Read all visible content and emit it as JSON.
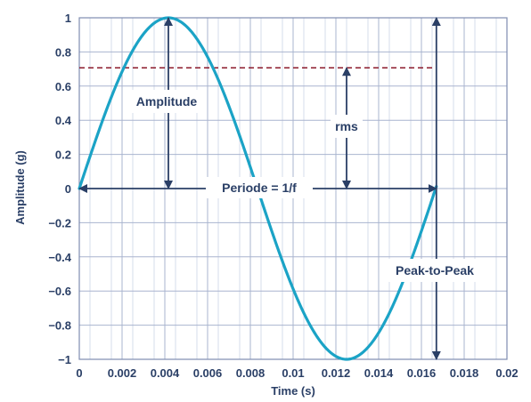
{
  "chart_data": {
    "type": "line",
    "title": "",
    "xlabel": "Time (s)",
    "ylabel": "Amplitude (g)",
    "xlim": [
      0,
      0.02
    ],
    "ylim": [
      -1,
      1
    ],
    "x_ticks": [
      "0",
      "0.002",
      "0.004",
      "0.006",
      "0.008",
      "0.01",
      "0.012",
      "0.014",
      "0.016",
      "0.018",
      "0.02"
    ],
    "y_ticks": [
      "1",
      "0.8",
      "0.6",
      "0.4",
      "0.2",
      "0",
      "−0.2",
      "−0.4",
      "−0.6",
      "−0.8",
      "−1"
    ],
    "grid": true,
    "series": [
      {
        "frequency_hz": 60,
        "amplitude": 1,
        "x_end": 0.0167,
        "color": "#1ba3c6"
      }
    ],
    "rms_level": 0.707,
    "rms_line_color": "#8b1a2b",
    "annotations": {
      "amplitude": "Amplitude",
      "rms": "rms",
      "period": "Periode = 1/f",
      "peak_to_peak": "Peak-to-Peak"
    },
    "annotation_color": "#2a3f66"
  }
}
